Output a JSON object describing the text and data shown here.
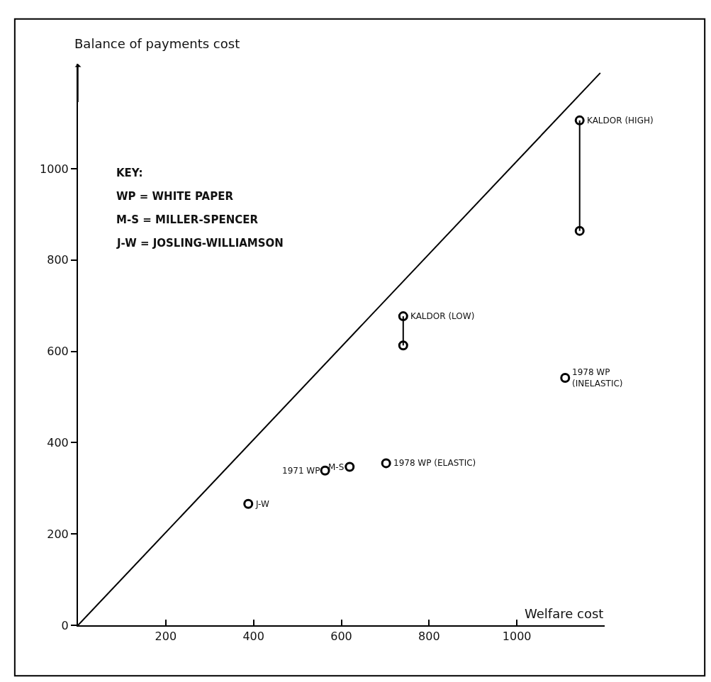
{
  "chart_data": {
    "type": "scatter",
    "xlabel": "Welfare cost",
    "ylabel": "Balance of payments cost",
    "xlim": [
      0,
      1200
    ],
    "ylim": [
      0,
      1230
    ],
    "xticks": [
      200,
      400,
      600,
      800,
      1000
    ],
    "yticks": [
      0,
      200,
      400,
      600,
      800,
      1000
    ],
    "marker": "circle",
    "series": [
      {
        "type": "line",
        "color": "#000000",
        "x": [
          0,
          1190
        ],
        "values": [
          0,
          1210
        ],
        "marker": "none"
      },
      {
        "color": "#000000",
        "x": [
          388,
          563,
          619,
          702,
          1110
        ],
        "values": [
          266,
          339,
          347,
          355,
          542
        ]
      },
      {
        "type": "line",
        "color": "#000000",
        "x": [
          741,
          741
        ],
        "values": [
          677,
          613
        ]
      },
      {
        "type": "line",
        "color": "#000000",
        "x": [
          1143,
          1143
        ],
        "values": [
          1106,
          864
        ]
      }
    ],
    "annotations": [
      "KEY:",
      "WP = WHITE PAPER",
      "M-S = MILLER-SPENCER",
      "J-W = JOSLING-WILLIAMSON",
      {
        "text": "J-W",
        "x": 388,
        "y": 266
      },
      {
        "text": "1971 WP",
        "x": 563,
        "y": 339
      },
      {
        "text": "M-S",
        "x": 619,
        "y": 347
      },
      {
        "text": "1978 WP (ELASTIC)",
        "x": 702,
        "y": 355
      },
      {
        "text": "KALDOR (LOW)",
        "x": 741,
        "y": 677
      },
      {
        "text": "KALDOR (HIGH)",
        "x": 1143,
        "y": 1106
      },
      {
        "text": "1978 WP\n(INELASTIC)",
        "x": 1110,
        "y": 542
      }
    ]
  }
}
